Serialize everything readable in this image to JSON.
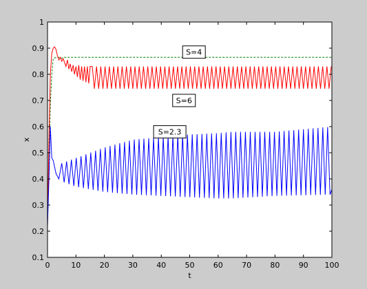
{
  "chart_data": {
    "type": "line",
    "xlabel": "t",
    "ylabel": "x",
    "xlim": [
      0,
      100
    ],
    "ylim": [
      0.1,
      1
    ],
    "x_ticks": [
      0,
      10,
      20,
      30,
      40,
      50,
      60,
      70,
      80,
      90,
      100
    ],
    "y_ticks": [
      0.1,
      0.2,
      0.3,
      0.4,
      0.5,
      0.6,
      0.7,
      0.8,
      0.9,
      1
    ],
    "x_tick_labels": [
      "0",
      "10",
      "20",
      "30",
      "40",
      "50",
      "60",
      "70",
      "80",
      "90",
      "100"
    ],
    "y_tick_labels": [
      "0.1",
      "0.2",
      "0.3",
      "0.4",
      "0.5",
      "0.6",
      "0.7",
      "0.8",
      "0.9",
      "1"
    ],
    "grid": false,
    "colors": {
      "S4": "#008000",
      "S6": "#ff0000",
      "S23": "#0000ff",
      "axes_bg": "#ffffff",
      "figure_bg": "#cccccc"
    },
    "series": [
      {
        "color": "#008000",
        "style": "dashed",
        "x": [
          0,
          0.5,
          1,
          1.5,
          2,
          3,
          4,
          5,
          6,
          8,
          10,
          100
        ],
        "y": [
          0.22,
          0.45,
          0.68,
          0.8,
          0.86,
          0.865,
          0.865,
          0.862,
          0.865,
          0.865,
          0.865,
          0.865
        ]
      },
      {
        "color": "#ff0000",
        "style": "solid",
        "x": [
          0,
          0.5,
          1,
          1.5,
          2,
          2.5,
          3,
          3.5,
          4,
          4.5,
          5,
          5.5,
          6,
          6.5,
          7,
          7.5,
          8,
          8.5,
          9,
          9.5,
          10,
          10.5,
          11,
          11.5,
          12,
          12.5,
          13,
          13.5,
          14,
          14.5,
          15,
          16,
          18,
          20,
          25,
          30,
          40,
          50,
          60,
          70,
          80,
          90,
          100
        ],
        "y": [
          0.22,
          0.55,
          0.8,
          0.88,
          0.9,
          0.905,
          0.895,
          0.87,
          0.855,
          0.865,
          0.85,
          0.86,
          0.845,
          0.83,
          0.855,
          0.82,
          0.84,
          0.81,
          0.835,
          0.8,
          0.83,
          0.79,
          0.835,
          0.78,
          0.83,
          0.775,
          0.83,
          0.77,
          0.83,
          0.765,
          0.83,
          0.76,
          0.75,
          0.75,
          0.745,
          0.745,
          0.745,
          0.745,
          0.745,
          0.745,
          0.745,
          0.745,
          0.745
        ],
        "osc_period": 1.5,
        "band_high": 0.83,
        "band_low": 0.745
      },
      {
        "color": "#0000ff",
        "style": "solid",
        "x": [
          0,
          0.5,
          1,
          1.5,
          2,
          3,
          4,
          5,
          10,
          20,
          30,
          40,
          50,
          60,
          65,
          70,
          80,
          90,
          100
        ],
        "y": [
          0.22,
          0.4,
          0.6,
          0.48,
          0.47,
          0.42,
          0.4,
          0.39,
          0.37,
          0.35,
          0.34,
          0.335,
          0.33,
          0.325,
          0.325,
          0.33,
          0.335,
          0.335,
          0.36
        ],
        "osc_period": 1.7,
        "band_high_at": [
          [
            5,
            0.46
          ],
          [
            10,
            0.48
          ],
          [
            20,
            0.52
          ],
          [
            30,
            0.55
          ],
          [
            40,
            0.56
          ],
          [
            50,
            0.57
          ],
          [
            60,
            0.575
          ],
          [
            65,
            0.58
          ],
          [
            80,
            0.58
          ],
          [
            100,
            0.6
          ]
        ],
        "band_low_at": [
          [
            5,
            0.39
          ],
          [
            10,
            0.37
          ],
          [
            20,
            0.35
          ],
          [
            30,
            0.34
          ],
          [
            40,
            0.335
          ],
          [
            50,
            0.33
          ],
          [
            60,
            0.325
          ],
          [
            65,
            0.325
          ],
          [
            80,
            0.335
          ],
          [
            100,
            0.34
          ]
        ]
      }
    ],
    "annotations": [
      {
        "text": "S=4",
        "x": 51.5,
        "y": 0.885
      },
      {
        "text": "S=6",
        "x": 48,
        "y": 0.7
      },
      {
        "text": "S=2.3",
        "x": 43,
        "y": 0.58
      }
    ]
  }
}
